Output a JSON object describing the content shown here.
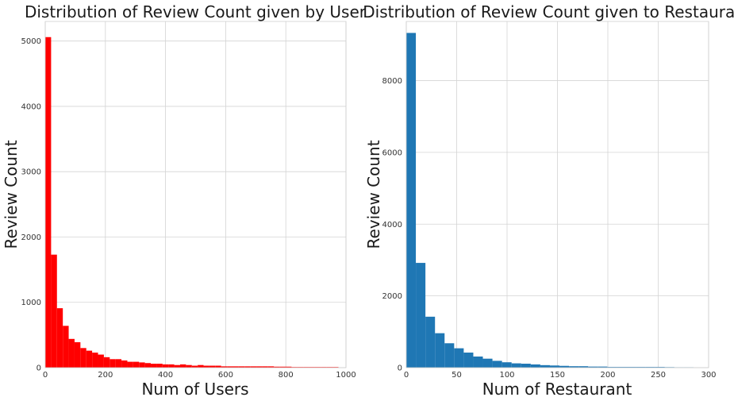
{
  "chart_data": [
    {
      "type": "bar",
      "title": "Distribution of Review Count given by User",
      "xlabel": "Num of Users",
      "ylabel": "Review Count",
      "xlim": [
        0,
        1000
      ],
      "ylim": [
        0,
        5300
      ],
      "xticks": [
        0,
        200,
        400,
        600,
        800,
        1000
      ],
      "yticks": [
        0,
        1000,
        2000,
        3000,
        4000,
        5000
      ],
      "grid": true,
      "color": "#ff0000",
      "bin_width": 19.5,
      "series": [
        {
          "values": [
            5060,
            1730,
            910,
            640,
            440,
            390,
            300,
            260,
            230,
            200,
            160,
            130,
            130,
            110,
            90,
            90,
            80,
            70,
            60,
            60,
            50,
            50,
            40,
            50,
            40,
            30,
            40,
            30,
            30,
            30,
            20,
            20,
            20,
            20,
            20,
            20,
            20,
            20,
            20,
            15,
            15,
            15,
            10,
            10,
            10,
            10,
            10,
            10,
            10,
            10
          ]
        }
      ]
    },
    {
      "type": "bar",
      "title": "Distribution of Review Count given to Restaurant",
      "xlabel": "Num of Restaurant",
      "ylabel": "Review Count",
      "xlim": [
        0,
        300
      ],
      "ylim": [
        0,
        9650
      ],
      "xticks": [
        0,
        50,
        100,
        150,
        200,
        250,
        300
      ],
      "yticks": [
        0,
        2000,
        4000,
        6000,
        8000
      ],
      "grid": true,
      "color": "#1f77b4",
      "bin_width": 9.5,
      "series": [
        {
          "values": [
            9330,
            2920,
            1420,
            960,
            680,
            540,
            420,
            310,
            250,
            190,
            150,
            120,
            110,
            90,
            70,
            60,
            50,
            40,
            40,
            30,
            30,
            20,
            20,
            20,
            20,
            20,
            20,
            15,
            10,
            10
          ]
        }
      ]
    }
  ]
}
